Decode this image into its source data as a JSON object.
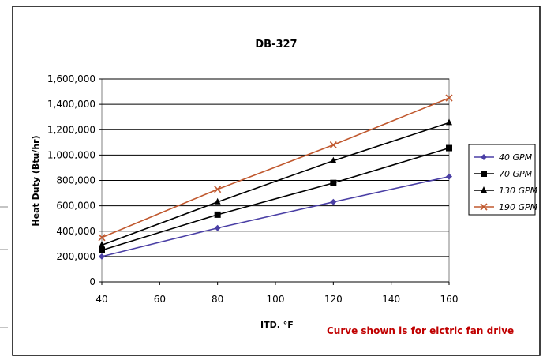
{
  "chart_data": {
    "type": "line",
    "title": "DB-327",
    "xlabel": "ITD. °F",
    "ylabel": "Heat Duty (Btu/hr)",
    "xlim": [
      40,
      160
    ],
    "ylim": [
      0,
      1600000
    ],
    "x_ticks": [
      "40",
      "60",
      "80",
      "100",
      "120",
      "140",
      "160"
    ],
    "y_ticks": [
      "0",
      "200,000",
      "400,000",
      "600,000",
      "800,000",
      "1,000,000",
      "1,200,000",
      "1,400,000",
      "1,600,000"
    ],
    "grid": "horizontal",
    "legend_position": "right",
    "x": [
      40,
      80,
      120,
      160
    ],
    "series": [
      {
        "name": "40 GPM",
        "values": [
          200000,
          425000,
          630000,
          830000
        ],
        "color": "#4a3fa5",
        "marker": "diamond"
      },
      {
        "name": "70 GPM",
        "values": [
          250000,
          530000,
          780000,
          1055000
        ],
        "color": "#000000",
        "marker": "square"
      },
      {
        "name": "130 GPM",
        "values": [
          290000,
          630000,
          955000,
          1255000
        ],
        "color": "#000000",
        "marker": "triangle"
      },
      {
        "name": "190 GPM",
        "values": [
          350000,
          730000,
          1080000,
          1450000
        ],
        "color": "#c0582e",
        "marker": "x"
      }
    ],
    "annotation": "Curve shown is for elctric fan drive",
    "annotation_color": "#c00000"
  }
}
